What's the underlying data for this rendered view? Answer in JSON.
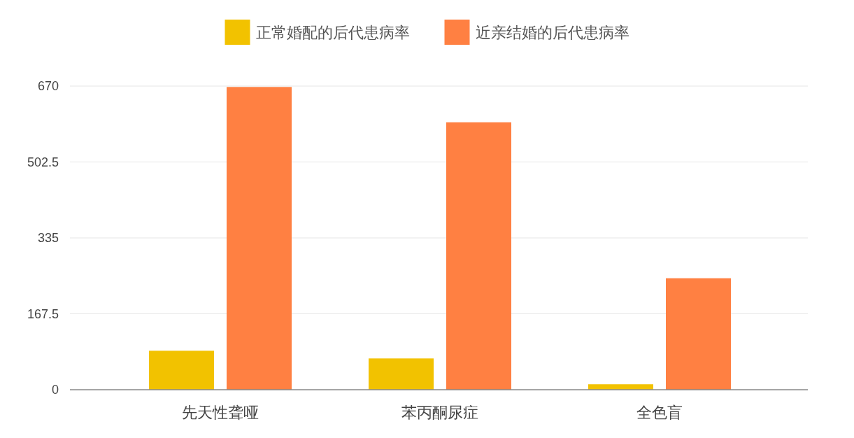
{
  "chart_data": {
    "type": "bar",
    "categories": [
      "先天性聋哑",
      "苯丙酮尿症",
      "全色盲"
    ],
    "series": [
      {
        "name": "正常婚配的后代患病率",
        "color": "#f2c200",
        "values": [
          86,
          69,
          12
        ]
      },
      {
        "name": "近亲结婚的后代患病率",
        "color": "#ff8042",
        "values": [
          668,
          590,
          246
        ]
      }
    ],
    "ylim": [
      0,
      670
    ],
    "yticks": [
      0,
      167.5,
      335,
      502.5,
      670
    ],
    "grid": "y",
    "legend": "top"
  }
}
